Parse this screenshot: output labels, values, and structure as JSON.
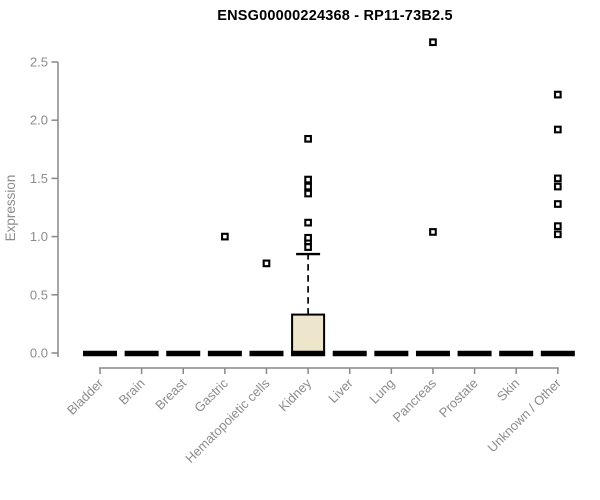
{
  "chart_data": {
    "type": "boxplot",
    "title": "ENSG00000224368 - RP11-73B2.5",
    "ylabel": "Expression",
    "xlabel": "",
    "ylim": [
      0,
      2.5
    ],
    "yticks": [
      0.0,
      0.5,
      1.0,
      1.5,
      2.0,
      2.5
    ],
    "grid": false,
    "legend": "none",
    "colors": {
      "box_fill": "#ede6cd",
      "box_stroke": "#000000",
      "median_bar": "#000000",
      "outlier": "#000000",
      "axis_line": "#898989",
      "tick_label": "#8c8c8c",
      "axis_label": "#8c8c8c",
      "title": "#000000",
      "background": "#ffffff"
    },
    "categories": [
      "Bladder",
      "Brain",
      "Breast",
      "Gastric",
      "Hematopoietic cells",
      "Kidney",
      "Liver",
      "Lung",
      "Pancreas",
      "Prostate",
      "Skin",
      "Unknown / Other"
    ],
    "series": [
      {
        "category": "Bladder",
        "min": 0,
        "q1": 0,
        "median": 0,
        "q3": 0,
        "whisker_high": 0,
        "outliers": []
      },
      {
        "category": "Brain",
        "min": 0,
        "q1": 0,
        "median": 0,
        "q3": 0,
        "whisker_high": 0,
        "outliers": []
      },
      {
        "category": "Breast",
        "min": 0,
        "q1": 0,
        "median": 0,
        "q3": 0,
        "whisker_high": 0,
        "outliers": []
      },
      {
        "category": "Gastric",
        "min": 0,
        "q1": 0,
        "median": 0,
        "q3": 0,
        "whisker_high": 0,
        "outliers": [
          1.0
        ]
      },
      {
        "category": "Hematopoietic cells",
        "min": 0,
        "q1": 0,
        "median": 0,
        "q3": 0,
        "whisker_high": 0,
        "outliers": [
          0.77
        ]
      },
      {
        "category": "Kidney",
        "min": 0,
        "q1": 0,
        "median": 0,
        "q3": 0.33,
        "whisker_high": 0.85,
        "outliers": [
          0.91,
          0.96,
          0.99,
          1.12,
          1.37,
          1.43,
          1.49,
          1.84
        ]
      },
      {
        "category": "Liver",
        "min": 0,
        "q1": 0,
        "median": 0,
        "q3": 0,
        "whisker_high": 0,
        "outliers": []
      },
      {
        "category": "Lung",
        "min": 0,
        "q1": 0,
        "median": 0,
        "q3": 0,
        "whisker_high": 0,
        "outliers": []
      },
      {
        "category": "Pancreas",
        "min": 0,
        "q1": 0,
        "median": 0,
        "q3": 0,
        "whisker_high": 0,
        "outliers": [
          1.04,
          2.67
        ]
      },
      {
        "category": "Prostate",
        "min": 0,
        "q1": 0,
        "median": 0,
        "q3": 0,
        "whisker_high": 0,
        "outliers": []
      },
      {
        "category": "Skin",
        "min": 0,
        "q1": 0,
        "median": 0,
        "q3": 0,
        "whisker_high": 0,
        "outliers": []
      },
      {
        "category": "Unknown / Other",
        "min": 0,
        "q1": 0,
        "median": 0,
        "q3": 0,
        "whisker_high": 0,
        "outliers": [
          1.02,
          1.09,
          1.28,
          1.43,
          1.5,
          1.92,
          2.22
        ]
      }
    ]
  }
}
